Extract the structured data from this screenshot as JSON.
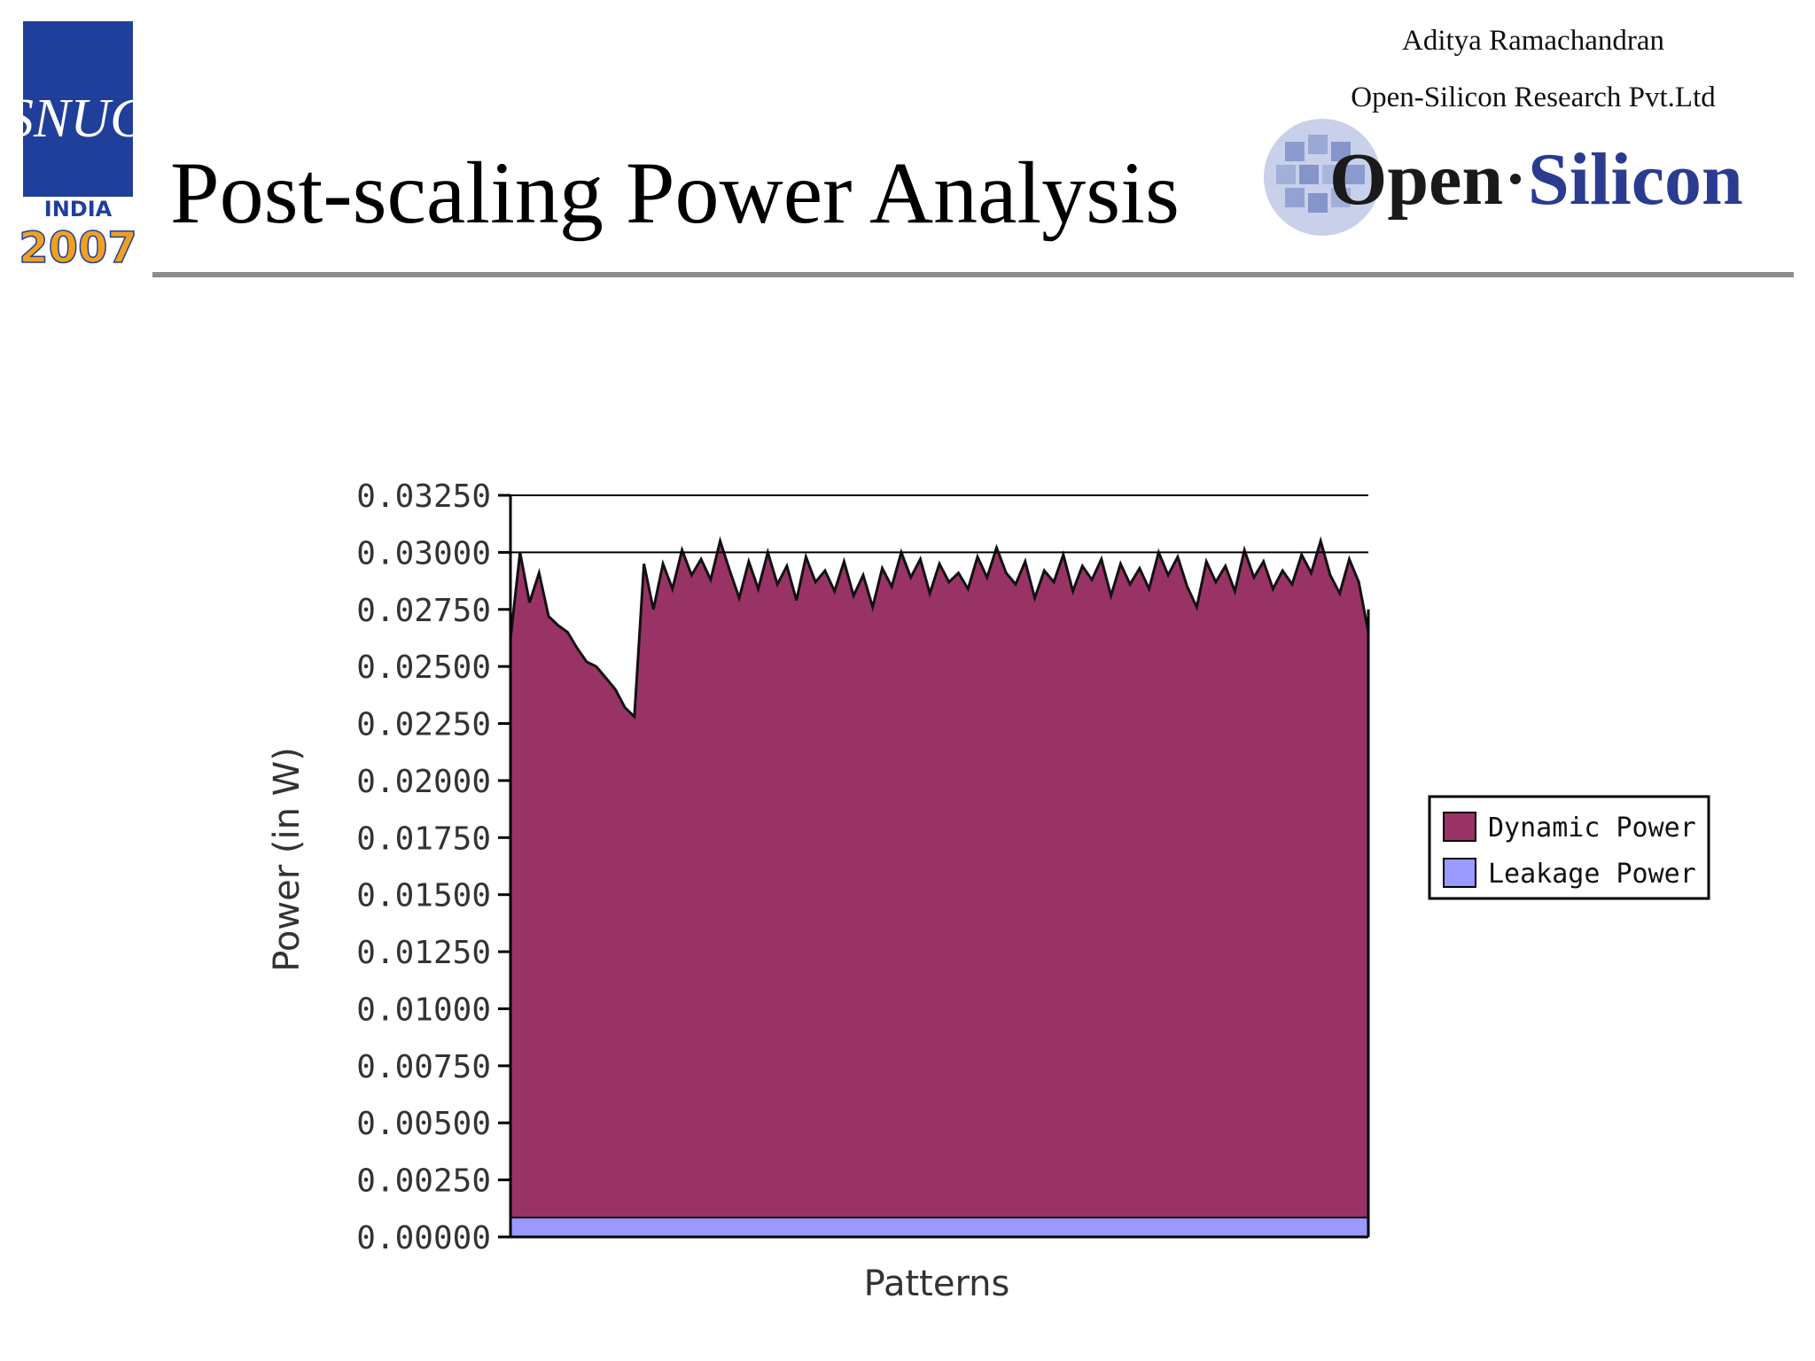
{
  "slide": {
    "title": "Post-scaling Power Analysis",
    "author": "Aditya Ramachandran",
    "company": "Open-Silicon Research Pvt.Ltd",
    "logo_left": {
      "top_text": "SNUG",
      "band_text": "INDIA",
      "year": "2007",
      "colors": {
        "blue": "#1f3f9a",
        "gold": "#f0a020"
      }
    },
    "logo_right": {
      "text_dark": "Open",
      "text_blue": "Silicon",
      "colors": {
        "dark": "#1a1a1a",
        "blue": "#2a3c8f",
        "tile": "#7b8ec8"
      }
    }
  },
  "chart_data": {
    "type": "area",
    "stacked": true,
    "title": "",
    "xlabel": "Patterns",
    "ylabel": "Power (in W)",
    "ylim": [
      0,
      0.0325
    ],
    "yticks": [
      "0.03250",
      "0.03000",
      "0.02750",
      "0.02500",
      "0.02250",
      "0.02000",
      "0.01750",
      "0.01500",
      "0.01250",
      "0.01000",
      "0.00750",
      "0.00500",
      "0.00250",
      "0.00000"
    ],
    "grid": "major horizontal at 0.03000 and 0.03250",
    "legend": {
      "placement": "right",
      "entries": [
        "Dynamic Power",
        "Leakage Power"
      ]
    },
    "series": [
      {
        "name": "Leakage Power",
        "color": "#9999ff",
        "values": [
          0.00085
        ]
      },
      {
        "name": "Dynamic Power",
        "color": "#993366",
        "values": [
          0.0262,
          0.03,
          0.0278,
          0.0291,
          0.0272,
          0.0268,
          0.0265,
          0.0258,
          0.0252,
          0.025,
          0.0245,
          0.024,
          0.0232,
          0.0228,
          0.0295,
          0.0275,
          0.0295,
          0.0284,
          0.0301,
          0.029,
          0.0297,
          0.0288,
          0.0305,
          0.0292,
          0.028,
          0.0296,
          0.0284,
          0.03,
          0.0286,
          0.0294,
          0.0279,
          0.0298,
          0.0287,
          0.0292,
          0.0283,
          0.0296,
          0.0281,
          0.029,
          0.0276,
          0.0293,
          0.0285,
          0.03,
          0.0289,
          0.0297,
          0.0282,
          0.0295,
          0.0287,
          0.0291,
          0.0284,
          0.0298,
          0.0289,
          0.0302,
          0.0291,
          0.0286,
          0.0296,
          0.028,
          0.0292,
          0.0287,
          0.0299,
          0.0283,
          0.0294,
          0.0288,
          0.0297,
          0.0281,
          0.0295,
          0.0286,
          0.0293,
          0.0284,
          0.03,
          0.029,
          0.0298,
          0.0285,
          0.0276,
          0.0296,
          0.0287,
          0.0294,
          0.0283,
          0.0301,
          0.0289,
          0.0296,
          0.0284,
          0.0292,
          0.0286,
          0.0299,
          0.0291,
          0.0305,
          0.029,
          0.0282,
          0.0297,
          0.0287,
          0.0265
        ]
      }
    ]
  }
}
